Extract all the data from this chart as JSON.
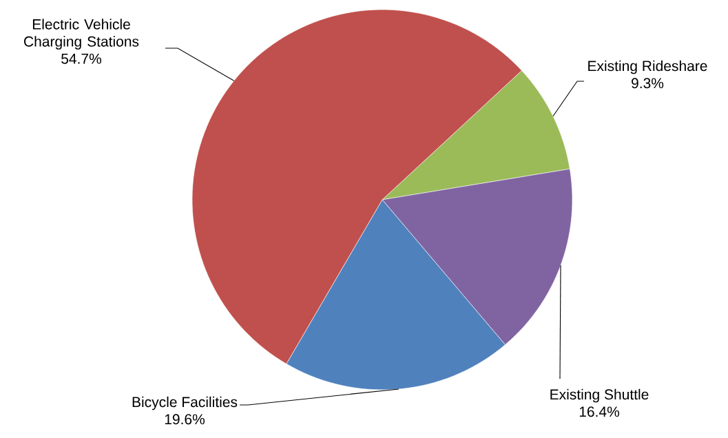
{
  "chart_data": {
    "type": "pie",
    "categories": [
      "Existing Rideshare",
      "Existing Shuttle",
      "Bicycle Facilities",
      "Electric Vehicle Charging Stations"
    ],
    "values": [
      9.3,
      16.4,
      19.6,
      54.7
    ],
    "colors": [
      "#9bbb59",
      "#8064a2",
      "#4f81bd",
      "#c0504d"
    ],
    "value_labels": [
      "9.3%",
      "16.4%",
      "19.6%",
      "54.7%"
    ]
  }
}
